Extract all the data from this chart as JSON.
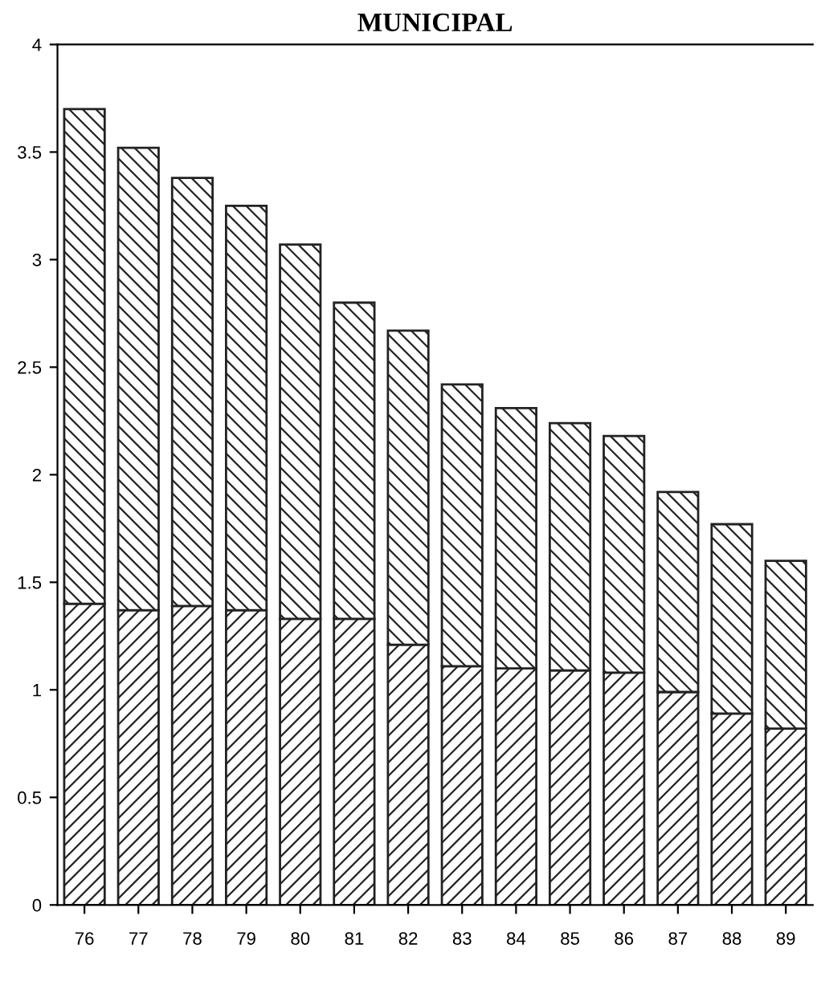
{
  "chart_data": {
    "type": "bar",
    "title": "MUNICIPAL",
    "stacked": true,
    "categories": [
      "76",
      "77",
      "78",
      "79",
      "80",
      "81",
      "82",
      "83",
      "84",
      "85",
      "86",
      "87",
      "88",
      "89"
    ],
    "series": [
      {
        "color": "#222222",
        "values": [
          1.4,
          1.37,
          1.39,
          1.37,
          1.33,
          1.33,
          1.21,
          1.11,
          1.1,
          1.09,
          1.08,
          0.99,
          0.89,
          0.82
        ]
      },
      {
        "color": "#222222",
        "values": [
          2.3,
          2.15,
          1.99,
          1.88,
          1.74,
          1.47,
          1.46,
          1.31,
          1.21,
          1.15,
          1.1,
          0.93,
          0.88,
          0.78
        ]
      }
    ],
    "ylim": [
      0,
      4
    ],
    "yticks": [
      0,
      0.5,
      1,
      1.5,
      2,
      2.5,
      3,
      3.5,
      4
    ],
    "grid": false,
    "legend": false
  }
}
